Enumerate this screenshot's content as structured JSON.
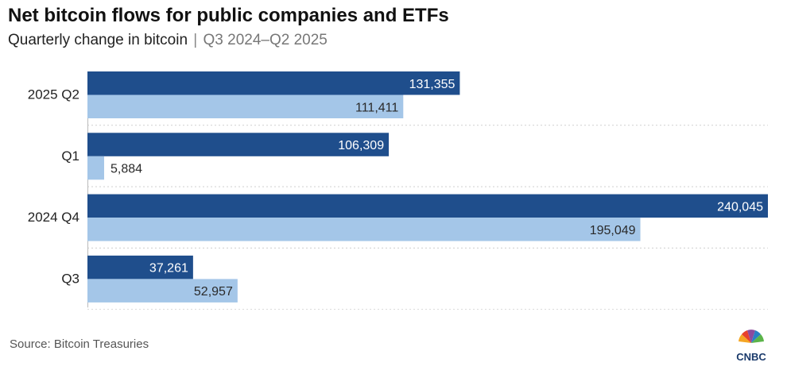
{
  "title": "Net bitcoin flows for public companies and ETFs",
  "subtitle": {
    "main": "Quarterly change in bitcoin",
    "separator": "|",
    "range": "Q3 2024–Q2 2025"
  },
  "source": "Source: Bitcoin Treasuries",
  "logo": {
    "text": "CNBC",
    "icon": "peacock-icon"
  },
  "colors": {
    "series_dark": "#1f4e8c",
    "series_light": "#a4c6e8",
    "grid": "#cfcfcf",
    "label_dark_bg": "#ffffff",
    "label_light_bg": "#2a2a2a"
  },
  "chart_data": {
    "type": "bar",
    "orientation": "horizontal",
    "title": "Net bitcoin flows for public companies and ETFs",
    "subtitle": "Quarterly change in bitcoin | Q3 2024–Q2 2025",
    "categories": [
      "2025 Q2",
      "Q1",
      "2024 Q4",
      "Q3"
    ],
    "series": [
      {
        "name": "Series 1 (dark)",
        "values": [
          131355,
          106309,
          240045,
          37261
        ],
        "labels": [
          "131,355",
          "106,309",
          "240,045",
          "37,261"
        ]
      },
      {
        "name": "Series 2 (light)",
        "values": [
          111411,
          5884,
          195049,
          52957
        ],
        "labels": [
          "111,411",
          "5,884",
          "195,049",
          "52,957"
        ]
      }
    ],
    "xlim": [
      0,
      240045
    ],
    "xlabel": "",
    "ylabel": "",
    "grid": "dotted separators between categories",
    "legend": "none"
  }
}
